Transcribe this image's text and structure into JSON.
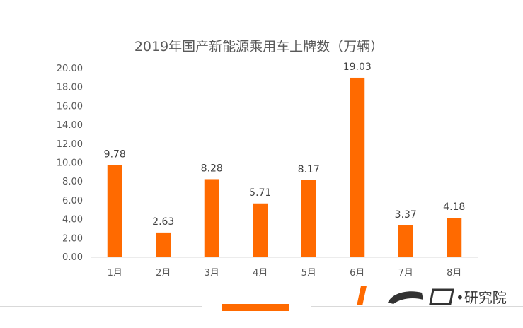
{
  "chart_data": {
    "type": "bar",
    "title": "2019年国产新能源乘用车上牌数（万辆）",
    "categories": [
      "1月",
      "2月",
      "3月",
      "4月",
      "5月",
      "6月",
      "7月",
      "8月"
    ],
    "values": [
      9.78,
      2.63,
      8.28,
      5.71,
      8.17,
      19.03,
      3.37,
      4.18
    ],
    "data_labels": [
      "9.78",
      "2.63",
      "8.28",
      "5.71",
      "8.17",
      "19.03",
      "3.37",
      "4.18"
    ],
    "yticks": [
      "0.00",
      "2.00",
      "4.00",
      "6.00",
      "8.00",
      "10.00",
      "12.00",
      "14.00",
      "16.00",
      "18.00",
      "20.00"
    ],
    "ylim": [
      0,
      20
    ],
    "grid": false,
    "legend": "none",
    "bar_color": "#ff6a00"
  },
  "watermark": {
    "brand_text": "•研究院",
    "logo_icon": "first-ev-logo"
  },
  "colors": {
    "accent": "#ff6a00",
    "axis": "#d9d9d9",
    "footer_line": "#d9d9d9"
  }
}
